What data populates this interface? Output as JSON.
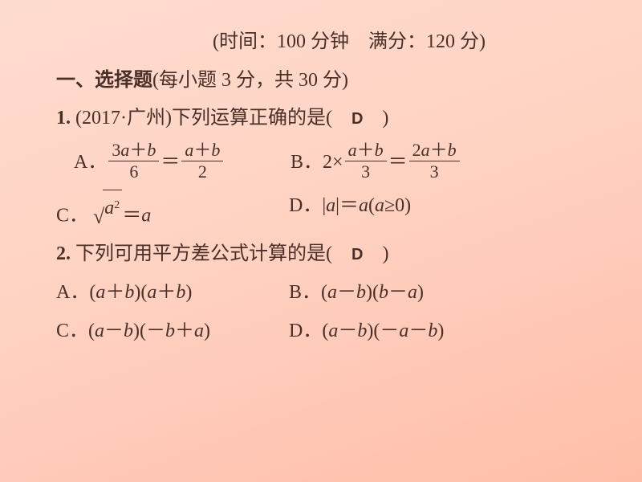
{
  "header": {
    "time_label": "(时间：",
    "time_value": "100",
    "time_unit": " 分钟　满分：",
    "full_score": "120",
    "full_unit": " 分)"
  },
  "section": {
    "title_prefix": "一、选择题",
    "title_detail": "(每小题 3 分，共 30 分)"
  },
  "q1": {
    "num": "1.",
    "src": " (2017·广州)下列运算正确的是(　",
    "ans": "D",
    "close": "　)",
    "A_label": "A．",
    "A_num1_a": "3",
    "A_num1_b": "a",
    "A_num1_c": "＋",
    "A_num1_d": "b",
    "A_den1": "6",
    "A_eq": "＝",
    "A_num2_a": "a",
    "A_num2_b": "＋",
    "A_num2_c": "b",
    "A_den2": "2",
    "B_label": "B．",
    "B_pre": "2×",
    "B_num1_a": "a",
    "B_num1_b": "＋",
    "B_num1_c": "b",
    "B_den1": "3",
    "B_eq": "＝",
    "B_num2_a": "2",
    "B_num2_b": "a",
    "B_num2_c": "＋",
    "B_num2_d": "b",
    "B_den2": "3",
    "C_label": "C．",
    "C_a": "a",
    "C_sup": "2",
    "C_eq": "＝",
    "C_a2": "a",
    "D_label": "D．",
    "D_text1": "|",
    "D_a1": "a",
    "D_text2": "|＝",
    "D_a2": "a",
    "D_text3": "(",
    "D_a3": "a",
    "D_text4": "≥0)"
  },
  "q2": {
    "num": "2.",
    "text": " 下列可用平方差公式计算的是(　",
    "ans": "D",
    "close": "　)",
    "A": "A．(",
    "A_a1": "a",
    "A_t1": "＋",
    "A_b1": "b",
    "A_t2": ")(",
    "A_a2": "a",
    "A_t3": "＋",
    "A_b2": "b",
    "A_t4": ")",
    "B": "B．(",
    "B_a1": "a",
    "B_t1": "－",
    "B_b1": "b",
    "B_t2": ")(",
    "B_b2": "b",
    "B_t3": "－",
    "B_a2": "a",
    "B_t4": ")",
    "C": "C．(",
    "C_a1": "a",
    "C_t1": "－",
    "C_b1": "b",
    "C_t2": ")(－",
    "C_b2": "b",
    "C_t3": "＋",
    "C_a2": "a",
    "C_t4": ")",
    "D": "D．(",
    "D_a1": "a",
    "D_t1": "－",
    "D_b1": "b",
    "D_t2": ")(－",
    "D_a2": "a",
    "D_t3": "－",
    "D_b2": "b",
    "D_t4": ")"
  }
}
